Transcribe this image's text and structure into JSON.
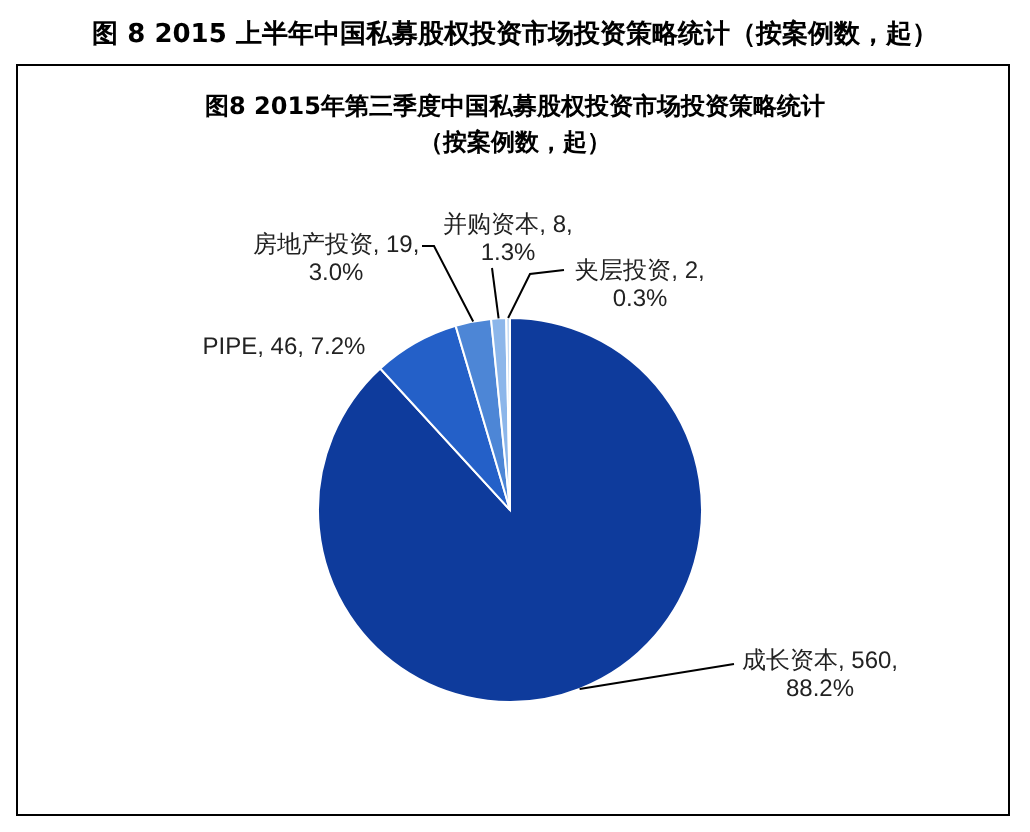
{
  "chart_data": {
    "type": "pie",
    "title": "图 8 2015 上半年中国私募股权投资市场投资策略统计（按案例数，起）",
    "subtitle": "图8  2015年第三季度中国私募股权投资市场投资策略统计（按案例数，起）",
    "categories": [
      "成长资本",
      "PIPE",
      "房地产投资",
      "并购资本",
      "夹层投资"
    ],
    "values": [
      560,
      46,
      19,
      8,
      2
    ],
    "value_labels": [
      "560, 88.2%",
      "46, 7.2%",
      "19, 3.0%",
      "8, 1.3%",
      "2, 0.3%"
    ],
    "colors": [
      "#0e3b9c",
      "#2460c8",
      "#4d86d6",
      "#8cb6ea",
      "#c6dcf5"
    ]
  }
}
